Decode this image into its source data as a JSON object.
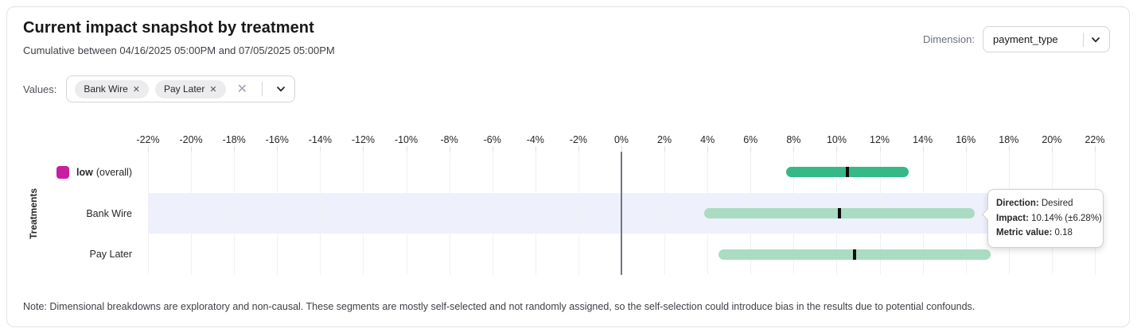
{
  "header": {
    "title": "Current impact snapshot by treatment",
    "subtitle": "Cumulative between 04/16/2025 05:00PM and 07/05/2025 05:00PM",
    "dimension_label": "Dimension:",
    "dimension_value": "payment_type"
  },
  "filters": {
    "values_label": "Values:",
    "chips": [
      {
        "label": "Bank Wire",
        "remove_icon": "✕"
      },
      {
        "label": "Pay Later",
        "remove_icon": "✕"
      }
    ],
    "clear_icon": "✕"
  },
  "chart_data": {
    "type": "interval_bar",
    "ylabel": "Treatments",
    "x_axis": {
      "min": -22,
      "max": 22,
      "step": 2,
      "tick_suffix": "%"
    },
    "zero_line": 0,
    "grid": true,
    "rows": [
      {
        "label_bold": "low",
        "label_suffix": "(overall)",
        "legend_color": "#c81e9f",
        "impact_pct": 10.5,
        "moe_pct": 2.85,
        "bar_color": "#35b987",
        "highlighted": false
      },
      {
        "label": "Bank Wire",
        "impact_pct": 10.14,
        "moe_pct": 6.28,
        "bar_color": "#a9dcc2",
        "highlighted": true
      },
      {
        "label": "Pay Later",
        "impact_pct": 10.84,
        "moe_pct": 6.33,
        "bar_color": "#a9dcc2",
        "highlighted": false
      }
    ],
    "highlight_color": "#eef0fc",
    "marker_color": "#0a0a0a"
  },
  "tooltip": {
    "direction_label": "Direction:",
    "direction_value": "Desired",
    "impact_label": "Impact:",
    "impact_value": "10.14% (±6.28%)",
    "metric_label": "Metric value:",
    "metric_value": "0.18"
  },
  "note": "Note: Dimensional breakdowns are exploratory and non-causal. These segments are mostly self-selected and not randomly assigned, so the self-selection could introduce bias in the results due to potential confounds."
}
